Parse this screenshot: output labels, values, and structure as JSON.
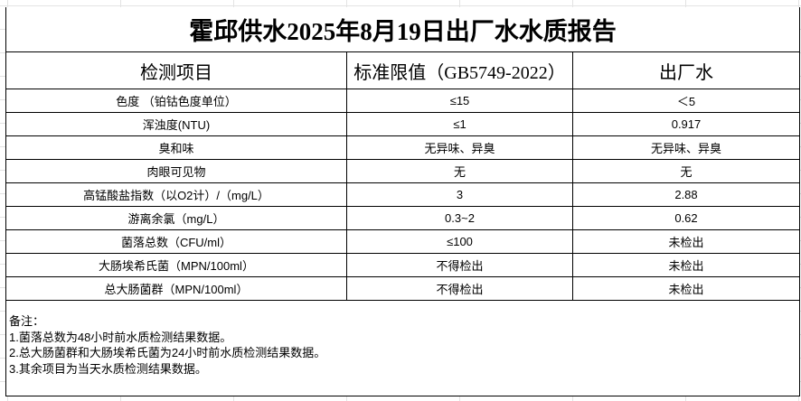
{
  "title": "霍邱供水2025年8月19日出厂水水质报告",
  "headers": [
    "检测项目",
    "标准限值（GB5749-2022）",
    "出厂水"
  ],
  "rows": [
    [
      "色度 （铂钴色度单位）",
      "≤15",
      "＜5"
    ],
    [
      "浑浊度(NTU)",
      "≤1",
      "0.917"
    ],
    [
      "臭和味",
      "无异味、异臭",
      "无异味、异臭"
    ],
    [
      "肉眼可见物",
      "无",
      "无"
    ],
    [
      "高锰酸盐指数（以O2计）/（mg/L）",
      "3",
      "2.88"
    ],
    [
      "游离余氯（mg/L）",
      "0.3~2",
      "0.62"
    ],
    [
      "菌落总数（CFU/ml）",
      "≤100",
      "未检出"
    ],
    [
      "大肠埃希氏菌（MPN/100ml）",
      "不得检出",
      "未检出"
    ],
    [
      "总大肠菌群（MPN/100ml）",
      "不得检出",
      "未检出"
    ]
  ],
  "notes": [
    "备注：",
    "1.菌落总数为48小时前水质检测结果数据。",
    "2.总大肠菌群和大肠埃希氏菌为24小时前水质检测结果数据。",
    "3.其余项目为当天水质检测结果数据。"
  ]
}
